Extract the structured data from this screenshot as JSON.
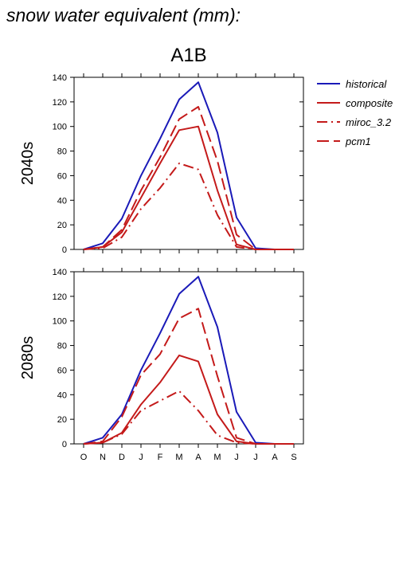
{
  "page": {
    "title": "snow water equivalent (mm):",
    "scenario": "A1B"
  },
  "chart_data": {
    "type": "line",
    "title": "A1B",
    "x": [
      "O",
      "N",
      "D",
      "J",
      "F",
      "M",
      "A",
      "M",
      "J",
      "J",
      "A",
      "S"
    ],
    "ylim": [
      0,
      140
    ],
    "yticks": [
      0,
      20,
      40,
      60,
      80,
      100,
      120,
      140
    ],
    "grid": false,
    "legend_position": "right",
    "legend": [
      {
        "name": "historical",
        "color": "#1a1ab8",
        "style": "solid"
      },
      {
        "name": "composite",
        "color": "#c41a1a",
        "style": "solid"
      },
      {
        "name": "miroc_3.2",
        "color": "#c41a1a",
        "style": "dash-dot"
      },
      {
        "name": "pcm1",
        "color": "#c41a1a",
        "style": "dashed"
      }
    ],
    "panels": [
      {
        "ylabel": "2040s",
        "series": [
          {
            "name": "historical",
            "values": [
              0,
              5,
              25,
              60,
              90,
              122,
              136,
              95,
              26,
              1,
              0,
              0
            ]
          },
          {
            "name": "composite",
            "values": [
              0,
              2,
              14,
              42,
              70,
              97,
              100,
              48,
              4,
              0,
              0,
              0
            ]
          },
          {
            "name": "miroc_3.2",
            "values": [
              0,
              1,
              10,
              33,
              50,
              70,
              65,
              28,
              2,
              0,
              0,
              0
            ]
          },
          {
            "name": "pcm1",
            "values": [
              0,
              2,
              16,
              48,
              75,
              106,
              116,
              72,
              12,
              0,
              0,
              0
            ]
          }
        ]
      },
      {
        "ylabel": "2080s",
        "series": [
          {
            "name": "historical",
            "values": [
              0,
              5,
              24,
              60,
              90,
              122,
              136,
              95,
              26,
              1,
              0,
              0
            ]
          },
          {
            "name": "composite",
            "values": [
              0,
              1,
              9,
              32,
              50,
              72,
              67,
              24,
              2,
              0,
              0,
              0
            ]
          },
          {
            "name": "miroc_3.2",
            "values": [
              0,
              1,
              8,
              27,
              35,
              43,
              27,
              7,
              1,
              0,
              0,
              0
            ]
          },
          {
            "name": "pcm1",
            "values": [
              0,
              2,
              22,
              56,
              73,
              102,
              110,
              55,
              5,
              0,
              0,
              0
            ]
          }
        ]
      }
    ]
  }
}
